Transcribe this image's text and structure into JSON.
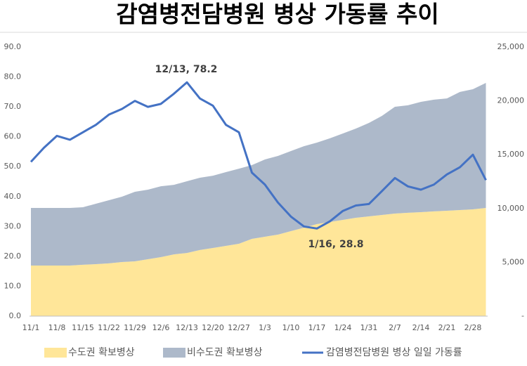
{
  "chart_data": {
    "type": "combo",
    "title": "감염병전담병원 병상 가동률 추이",
    "categories": [
      "11/1",
      null,
      "11/8",
      null,
      "11/15",
      null,
      "11/22",
      null,
      "11/29",
      null,
      "12/6",
      null,
      "12/13",
      null,
      "12/20",
      null,
      "12/27",
      null,
      "1/3",
      null,
      "1/10",
      null,
      "1/17",
      null,
      "1/24",
      null,
      "1/31",
      null,
      "2/7",
      null,
      "2/14",
      null,
      "2/21",
      null,
      "2/28",
      null
    ],
    "series": [
      {
        "name": "수도권 확보병상",
        "type": "area",
        "axis": "y2",
        "color": "#ffe699",
        "values": [
          4700,
          4700,
          4700,
          4700,
          4770,
          4830,
          4900,
          5030,
          5090,
          5290,
          5480,
          5740,
          5870,
          6140,
          6330,
          6530,
          6720,
          7180,
          7380,
          7570,
          7900,
          8220,
          8550,
          8750,
          8940,
          9140,
          9270,
          9400,
          9530,
          9600,
          9660,
          9730,
          9790,
          9860,
          9920,
          10050
        ]
      },
      {
        "name": "비수도권 확보병상",
        "type": "area",
        "axis": "y2",
        "color": "#adb9ca",
        "values": [
          5350,
          5350,
          5350,
          5350,
          5350,
          5610,
          5870,
          6070,
          6460,
          6460,
          6590,
          6460,
          6660,
          6720,
          6720,
          6850,
          6980,
          6850,
          7180,
          7310,
          7440,
          7570,
          7570,
          7770,
          8030,
          8290,
          8680,
          9200,
          9920,
          9990,
          10250,
          10380,
          10440,
          10970,
          11160,
          11620
        ]
      },
      {
        "name": "감염병전담병원 병상 일일 가동률",
        "type": "line",
        "axis": "y",
        "color": "#4472c4",
        "values": [
          51.6,
          56.3,
          60.3,
          59,
          61.5,
          64,
          67.4,
          69.3,
          72,
          70,
          71,
          74.4,
          78.2,
          72.8,
          70.4,
          64,
          61.5,
          48,
          44,
          38,
          33.3,
          30,
          29.3,
          31.7,
          35.2,
          37,
          37.5,
          41.8,
          46.2,
          43.4,
          42.3,
          44,
          47.4,
          49.8,
          54,
          45.5
        ]
      }
    ],
    "annotations": [
      {
        "text": "12/13, 78.2"
      },
      {
        "text": "1/16, 28.8"
      }
    ],
    "ylim": [
      0,
      90
    ],
    "yticks": [
      {
        "value": 0,
        "label": "0.0"
      },
      {
        "value": 10,
        "label": "10.0"
      },
      {
        "value": 20,
        "label": "20.0"
      },
      {
        "value": 30,
        "label": "30.0"
      },
      {
        "value": 40,
        "label": "40.0"
      },
      {
        "value": 50,
        "label": "50.0"
      },
      {
        "value": 60,
        "label": "60.0"
      },
      {
        "value": 70,
        "label": "70.0"
      },
      {
        "value": 80,
        "label": "80.0"
      },
      {
        "value": 90,
        "label": "90.0"
      }
    ],
    "y2lim": [
      0,
      25000
    ],
    "y2ticks": [
      {
        "value": 0,
        "label": "-"
      },
      {
        "value": 5000,
        "label": "5,000"
      },
      {
        "value": 10000,
        "label": "10,000"
      },
      {
        "value": 15000,
        "label": "15,000"
      },
      {
        "value": 20000,
        "label": "20,000"
      },
      {
        "value": 25000,
        "label": "25,000"
      }
    ],
    "legend": "bottom"
  }
}
